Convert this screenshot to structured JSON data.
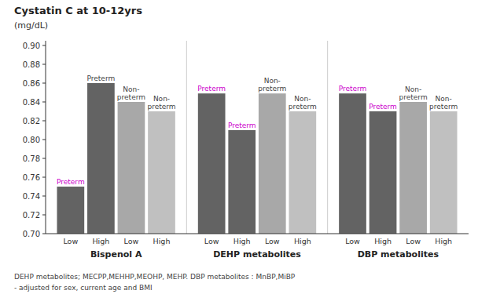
{
  "chart_data": {
    "type": "bar",
    "title": "Cystatin C at 10-12yrs",
    "ylabel": "(mg/dL)",
    "categories": [
      "Bispenol A",
      "DEHP metabolites",
      "DBP metabolites"
    ],
    "series": [
      {
        "name": "Low",
        "color": "#636363",
        "values": [
          0.75,
          0.849,
          0.849
        ],
        "annotations": [
          {
            "text": "Preterm",
            "color": "#cc00cc"
          },
          {
            "text": "Preterm",
            "color": "#cc00cc"
          },
          {
            "text": "Preterm",
            "color": "#cc00cc"
          }
        ]
      },
      {
        "name": "High",
        "color": "#636363",
        "values": [
          0.86,
          0.81,
          0.83
        ],
        "annotations": [
          {
            "text": "Preterm",
            "color": "#444444"
          },
          {
            "text": "Preterm",
            "color": "#cc00cc"
          },
          {
            "text": "Preterm",
            "color": "#cc00cc"
          }
        ]
      },
      {
        "name": "Low",
        "color": "#a8a8a8",
        "values": [
          0.84,
          0.849,
          0.84
        ],
        "annotations": [
          {
            "text": "Non-\npreterm",
            "color": "#444444"
          },
          {
            "text": "Non-\npreterm",
            "color": "#444444"
          },
          {
            "text": "Non-\npreterm",
            "color": "#444444"
          }
        ]
      },
      {
        "name": "High",
        "color": "#c0c0c0",
        "values": [
          0.83,
          0.83,
          0.83
        ],
        "annotations": [
          {
            "text": "Non-\npreterm",
            "color": "#444444"
          },
          {
            "text": "Non-\npreterm",
            "color": "#444444"
          },
          {
            "text": "Non-\npreterm",
            "color": "#444444"
          }
        ]
      }
    ],
    "ylim": [
      0.7,
      0.905
    ],
    "yticks": [
      {
        "value": 0.7,
        "label": "0.70"
      },
      0.72,
      0.74,
      0.76,
      0.78,
      {
        "value": 0.8,
        "label": "0.80"
      },
      0.82,
      0.84,
      0.86,
      0.88,
      {
        "value": 0.9,
        "label": "0.90"
      }
    ],
    "grid": false,
    "footnotes": [
      "DEHP metabolites; MECPP,MEHHP,MEOHP, MEHP. DBP metabolites : MnBP,MiBP",
      "- adjusted for sex, current age and BMI"
    ]
  }
}
